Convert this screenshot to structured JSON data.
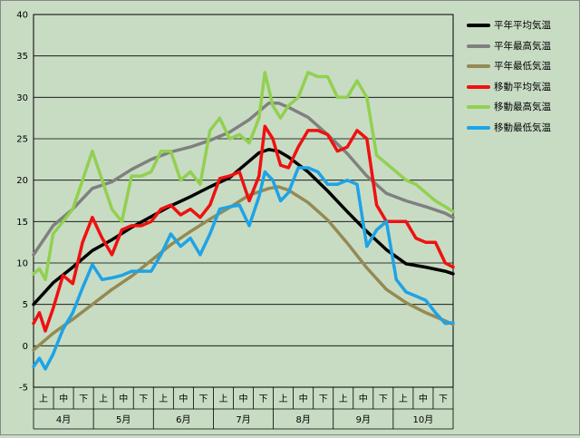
{
  "chart_data": {
    "type": "line",
    "ylim": [
      -5,
      40
    ],
    "yticks": [
      -5,
      0,
      5,
      10,
      15,
      20,
      25,
      30,
      35,
      40
    ],
    "months": [
      "4月",
      "5月",
      "6月",
      "7月",
      "8月",
      "9月",
      "10月"
    ],
    "decade_labels": [
      "上",
      "中",
      "下"
    ],
    "x_range": [
      0,
      214
    ],
    "series": [
      {
        "name": "平年平均気温",
        "color": "#000000",
        "x": [
          0,
          10,
          20,
          30,
          40,
          50,
          60,
          70,
          80,
          90,
          100,
          110,
          115,
          120,
          125,
          130,
          140,
          150,
          160,
          170,
          180,
          190,
          200,
          210,
          214
        ],
        "y": [
          5,
          7.6,
          9.5,
          11.5,
          12.8,
          14.3,
          15.6,
          16.9,
          18.0,
          19.2,
          20.3,
          22.3,
          23.3,
          23.7,
          23.5,
          22.8,
          21.0,
          18.7,
          16.2,
          13.8,
          11.6,
          9.9,
          9.5,
          9.0,
          8.7
        ]
      },
      {
        "name": "平年最高気温",
        "color": "#808080",
        "x": [
          0,
          10,
          20,
          30,
          40,
          50,
          60,
          70,
          80,
          90,
          100,
          110,
          120,
          125,
          130,
          140,
          150,
          160,
          170,
          180,
          190,
          200,
          210,
          214
        ],
        "y": [
          11,
          14.5,
          16.5,
          19.0,
          19.8,
          21.3,
          22.5,
          23.4,
          24.0,
          24.8,
          25.8,
          27.3,
          29.3,
          29.3,
          28.8,
          27.6,
          25.5,
          23.2,
          20.5,
          18.4,
          17.5,
          16.8,
          16.0,
          15.5
        ]
      },
      {
        "name": "平年最低気温",
        "color": "#948a54",
        "x": [
          0,
          10,
          20,
          30,
          40,
          50,
          60,
          70,
          80,
          90,
          100,
          110,
          120,
          125,
          130,
          140,
          150,
          160,
          170,
          180,
          190,
          200,
          210,
          214
        ],
        "y": [
          -0.5,
          1.5,
          3.2,
          5.0,
          6.8,
          8.4,
          10.3,
          12.2,
          13.8,
          15.3,
          16.7,
          18.2,
          19.0,
          19.2,
          18.8,
          17.3,
          15.2,
          12.4,
          9.4,
          6.8,
          5.2,
          4.0,
          3.0,
          2.6
        ]
      },
      {
        "name": "移動平均気温",
        "color": "#ee1111",
        "x": [
          0,
          3,
          6,
          10,
          15,
          20,
          25,
          30,
          35,
          40,
          45,
          50,
          55,
          60,
          65,
          70,
          75,
          80,
          85,
          90,
          95,
          100,
          105,
          110,
          115,
          118,
          122,
          126,
          130,
          135,
          140,
          145,
          150,
          155,
          160,
          165,
          170,
          175,
          180,
          185,
          190,
          195,
          200,
          205,
          210,
          214
        ],
        "y": [
          2.7,
          4,
          1.8,
          4.5,
          8.5,
          7.5,
          12.5,
          15.5,
          13,
          11,
          14,
          14.5,
          14.5,
          15,
          16.5,
          17,
          15.8,
          16.5,
          15.5,
          17,
          20.2,
          20.5,
          21,
          17.5,
          20.5,
          26.5,
          25,
          21.8,
          21.5,
          24,
          26,
          26,
          25.5,
          23.5,
          24,
          26,
          25,
          17,
          15,
          15,
          15,
          13,
          12.5,
          12.5,
          10,
          9.5
        ]
      },
      {
        "name": "移動最高気温",
        "color": "#92d050",
        "x": [
          0,
          3,
          6,
          10,
          15,
          20,
          25,
          30,
          35,
          40,
          45,
          50,
          55,
          60,
          65,
          70,
          75,
          80,
          85,
          90,
          95,
          100,
          105,
          110,
          115,
          118,
          122,
          126,
          130,
          135,
          140,
          145,
          150,
          155,
          160,
          165,
          170,
          175,
          180,
          185,
          190,
          195,
          200,
          205,
          210,
          214
        ],
        "y": [
          8.7,
          9.3,
          8,
          13.5,
          15,
          16.5,
          20,
          23.5,
          20,
          16.5,
          15,
          20.5,
          20.5,
          21,
          23.5,
          23.5,
          20,
          21,
          19.5,
          26,
          27.5,
          25,
          25.5,
          24.5,
          27.5,
          33,
          29,
          27.5,
          29,
          30,
          33,
          32.5,
          32.5,
          30,
          30,
          32,
          30,
          23,
          22,
          21,
          20,
          19.5,
          18.5,
          17.5,
          16.8,
          16.2
        ]
      },
      {
        "name": "移動最低気温",
        "color": "#1ea3e6",
        "x": [
          0,
          3,
          6,
          10,
          15,
          20,
          25,
          30,
          35,
          40,
          45,
          50,
          55,
          60,
          65,
          70,
          75,
          80,
          85,
          90,
          95,
          100,
          105,
          110,
          115,
          118,
          122,
          126,
          130,
          135,
          140,
          145,
          150,
          155,
          160,
          165,
          170,
          175,
          180,
          185,
          190,
          195,
          200,
          205,
          210,
          214
        ],
        "y": [
          -2.5,
          -1.5,
          -2.8,
          -1,
          2,
          4,
          7,
          9.8,
          8,
          8.2,
          8.5,
          9,
          9,
          9,
          11,
          13.5,
          12,
          13,
          11,
          13.5,
          16.5,
          16.8,
          17,
          14.5,
          18,
          21,
          20,
          17.5,
          18.5,
          21.5,
          21.5,
          21,
          19.5,
          19.5,
          20,
          19.5,
          12,
          14,
          15,
          8,
          6.5,
          6,
          5.5,
          4,
          2.7,
          2.8
        ]
      }
    ]
  }
}
